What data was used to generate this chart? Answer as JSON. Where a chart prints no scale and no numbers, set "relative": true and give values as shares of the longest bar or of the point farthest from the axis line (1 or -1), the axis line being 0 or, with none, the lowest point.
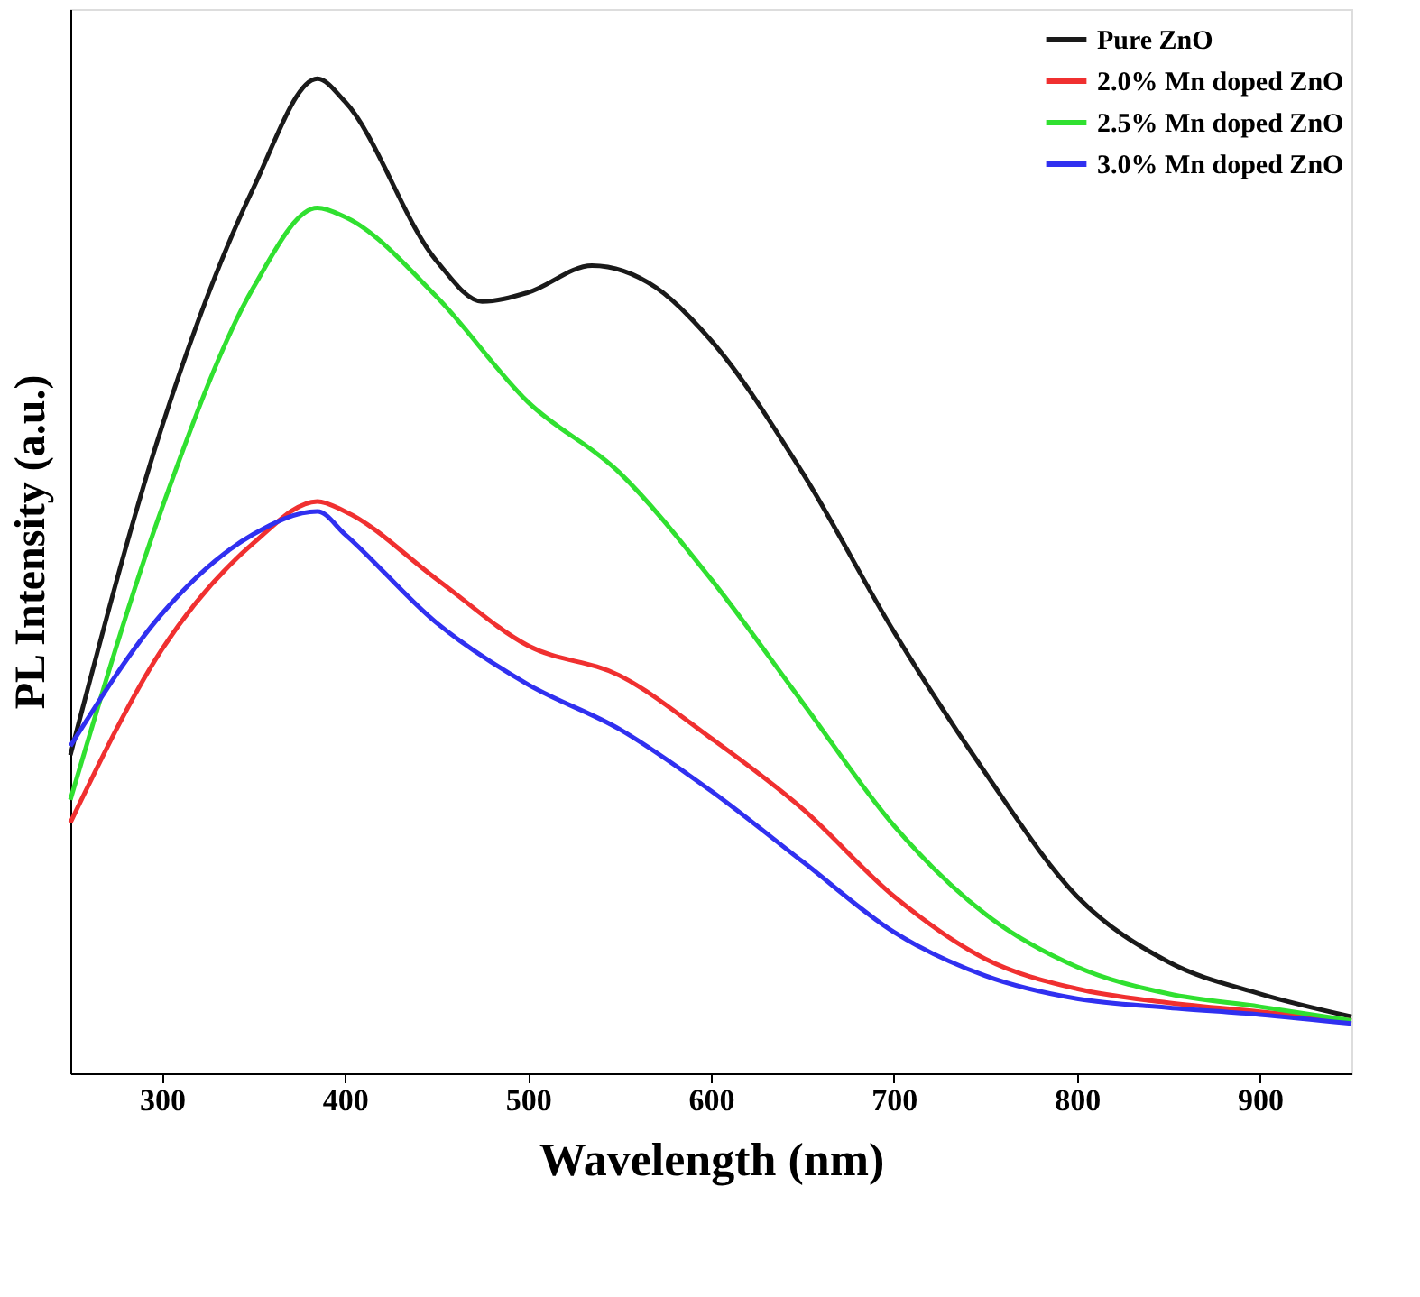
{
  "chart_data": {
    "type": "line",
    "xlabel": "Wavelength (nm)",
    "ylabel": "PL Intensity (a.u.)",
    "relative": true,
    "x": [
      250,
      300,
      350,
      385,
      400,
      450,
      500,
      550,
      600,
      650,
      700,
      750,
      800,
      850,
      900,
      950
    ],
    "xlim": [
      250,
      950
    ],
    "xticks": [
      300,
      400,
      500,
      600,
      700,
      800,
      900
    ],
    "grid": false,
    "legend": "top right",
    "marker": "none",
    "line_style": "solid",
    "tick_labels": "x",
    "series": [
      {
        "name": "Pure ZnO",
        "color": "#1a1a1a",
        "x": [
          250,
          300,
          350,
          385,
          400,
          450,
          475,
          500,
          535,
          570,
          600,
          650,
          700,
          750,
          800,
          850,
          900,
          950
        ],
        "values": [
          0.32,
          0.65,
          0.89,
          1.0,
          0.977,
          0.817,
          0.776,
          0.785,
          0.812,
          0.79,
          0.737,
          0.604,
          0.444,
          0.302,
          0.178,
          0.112,
          0.08,
          0.057
        ]
      },
      {
        "name": "2.0% Mn doped ZnO",
        "color": "#f03030",
        "values": [
          0.252,
          0.426,
          0.533,
          0.575,
          0.565,
          0.497,
          0.43,
          0.4,
          0.337,
          0.266,
          0.178,
          0.115,
          0.085,
          0.071,
          0.062,
          0.053
        ]
      },
      {
        "name": "2.5% Mn doped ZnO",
        "color": "#30e030",
        "values": [
          0.275,
          0.568,
          0.79,
          0.87,
          0.861,
          0.781,
          0.675,
          0.604,
          0.497,
          0.373,
          0.249,
          0.16,
          0.107,
          0.08,
          0.067,
          0.053
        ]
      },
      {
        "name": "3.0% Mn doped ZnO",
        "color": "#3030f0",
        "values": [
          0.329,
          0.462,
          0.542,
          0.565,
          0.542,
          0.453,
          0.391,
          0.346,
          0.284,
          0.213,
          0.142,
          0.098,
          0.075,
          0.066,
          0.059,
          0.05
        ]
      }
    ]
  }
}
